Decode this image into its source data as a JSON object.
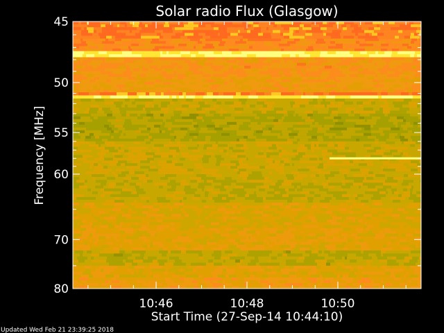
{
  "chart_data": {
    "type": "heatmap",
    "title": "Solar radio Flux (Glasgow)",
    "xlabel": "Start Time (27-Sep-14 10:44:10)",
    "ylabel": "Frequency [MHz]",
    "x_range": [
      "10:44:10",
      "10:51:50"
    ],
    "x_ticks": [
      {
        "time": "10:46",
        "label": "10:46"
      },
      {
        "time": "10:48",
        "label": "10:48"
      },
      {
        "time": "10:50",
        "label": "10:50"
      }
    ],
    "y_range": [
      45,
      80
    ],
    "y_ticks": [
      {
        "value": 45,
        "label": "45"
      },
      {
        "value": 50,
        "label": "50"
      },
      {
        "value": 55,
        "label": "55"
      },
      {
        "value": 60,
        "label": "60"
      },
      {
        "value": 70,
        "label": "70"
      },
      {
        "value": 80,
        "label": "80"
      }
    ],
    "y_minor_ticks": [
      46,
      47,
      48,
      49,
      51,
      52,
      53,
      54,
      56,
      57,
      58,
      59,
      65,
      75
    ],
    "colormap": [
      "#8c8c00",
      "#a6a000",
      "#c8a800",
      "#e0a000",
      "#f09a10",
      "#ff8a20",
      "#ff6a20",
      "#ffe020",
      "#ffff80"
    ],
    "bands": [
      {
        "from": 45.0,
        "to": 46.3,
        "level": 0.72
      },
      {
        "from": 46.3,
        "to": 47.3,
        "level": 0.62
      },
      {
        "from": 47.3,
        "to": 47.8,
        "level": 0.97
      },
      {
        "from": 47.8,
        "to": 49.5,
        "level": 0.55
      },
      {
        "from": 49.5,
        "to": 50.9,
        "level": 0.48
      },
      {
        "from": 50.9,
        "to": 51.2,
        "level": 0.7
      },
      {
        "from": 51.2,
        "to": 51.5,
        "level": 0.95
      },
      {
        "from": 51.5,
        "to": 53.0,
        "level": 0.25
      },
      {
        "from": 53.0,
        "to": 56.0,
        "level": 0.18
      },
      {
        "from": 56.0,
        "to": 60.0,
        "level": 0.28
      },
      {
        "from": 60.0,
        "to": 64.0,
        "level": 0.22
      },
      {
        "from": 64.0,
        "to": 68.0,
        "level": 0.34
      },
      {
        "from": 68.0,
        "to": 72.0,
        "level": 0.4
      },
      {
        "from": 72.0,
        "to": 75.0,
        "level": 0.2
      },
      {
        "from": 75.0,
        "to": 77.5,
        "level": 0.38
      },
      {
        "from": 77.5,
        "to": 80.0,
        "level": 0.46
      }
    ],
    "features": [
      {
        "start": "10:49:49",
        "end": "10:51:50",
        "freq": 58.0,
        "level": 0.97
      }
    ]
  },
  "footer": {
    "updated": "Updated Wed Feb 21 23:39:25 2018"
  }
}
